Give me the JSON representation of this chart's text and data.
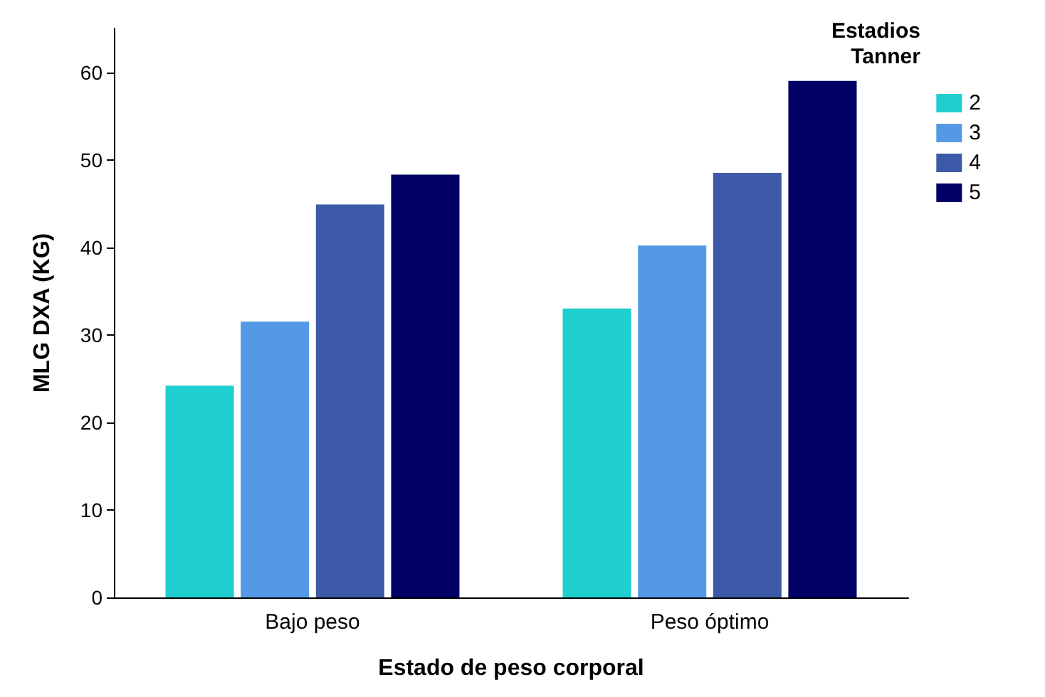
{
  "chart_data": {
    "type": "bar",
    "xlabel": "Estado de peso corporal",
    "ylabel": "MLG DXA (KG)",
    "legend_title": "Estadios\nTanner",
    "categories": [
      "Bajo peso",
      "Peso óptimo"
    ],
    "series": [
      {
        "name": "2",
        "color": "#1fcfcf",
        "values": [
          24.2,
          33.0
        ]
      },
      {
        "name": "3",
        "color": "#5599e6",
        "values": [
          31.5,
          40.2
        ]
      },
      {
        "name": "4",
        "color": "#3d5aa8",
        "values": [
          44.9,
          48.5
        ]
      },
      {
        "name": "5",
        "color": "#000066",
        "values": [
          48.3,
          59.0
        ]
      }
    ],
    "ylim": [
      0,
      65
    ],
    "yticks": [
      0,
      10,
      20,
      30,
      40,
      50,
      60
    ],
    "grid": false,
    "legend": "right"
  }
}
